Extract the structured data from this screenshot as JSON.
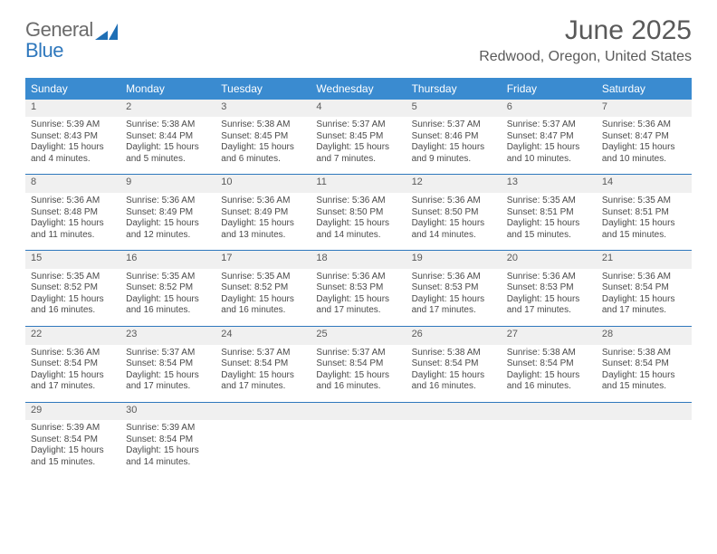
{
  "brand": {
    "word1": "General",
    "word2": "Blue",
    "word1_color": "#6b6b6b",
    "word2_color": "#2f78bd",
    "mark_color": "#1f6fb5"
  },
  "title": "June 2025",
  "subtitle": "Redwood, Oregon, United States",
  "colors": {
    "header_bg": "#3a8bd0",
    "header_fg": "#ffffff",
    "row_shade": "#f0f0f0",
    "rule": "#2f78bd",
    "text": "#4a4a4a"
  },
  "day_headers": [
    "Sunday",
    "Monday",
    "Tuesday",
    "Wednesday",
    "Thursday",
    "Friday",
    "Saturday"
  ],
  "weeks": [
    [
      {
        "n": "1",
        "sr": "5:39 AM",
        "ss": "8:43 PM",
        "dl": "15 hours and 4 minutes."
      },
      {
        "n": "2",
        "sr": "5:38 AM",
        "ss": "8:44 PM",
        "dl": "15 hours and 5 minutes."
      },
      {
        "n": "3",
        "sr": "5:38 AM",
        "ss": "8:45 PM",
        "dl": "15 hours and 6 minutes."
      },
      {
        "n": "4",
        "sr": "5:37 AM",
        "ss": "8:45 PM",
        "dl": "15 hours and 7 minutes."
      },
      {
        "n": "5",
        "sr": "5:37 AM",
        "ss": "8:46 PM",
        "dl": "15 hours and 9 minutes."
      },
      {
        "n": "6",
        "sr": "5:37 AM",
        "ss": "8:47 PM",
        "dl": "15 hours and 10 minutes."
      },
      {
        "n": "7",
        "sr": "5:36 AM",
        "ss": "8:47 PM",
        "dl": "15 hours and 10 minutes."
      }
    ],
    [
      {
        "n": "8",
        "sr": "5:36 AM",
        "ss": "8:48 PM",
        "dl": "15 hours and 11 minutes."
      },
      {
        "n": "9",
        "sr": "5:36 AM",
        "ss": "8:49 PM",
        "dl": "15 hours and 12 minutes."
      },
      {
        "n": "10",
        "sr": "5:36 AM",
        "ss": "8:49 PM",
        "dl": "15 hours and 13 minutes."
      },
      {
        "n": "11",
        "sr": "5:36 AM",
        "ss": "8:50 PM",
        "dl": "15 hours and 14 minutes."
      },
      {
        "n": "12",
        "sr": "5:36 AM",
        "ss": "8:50 PM",
        "dl": "15 hours and 14 minutes."
      },
      {
        "n": "13",
        "sr": "5:35 AM",
        "ss": "8:51 PM",
        "dl": "15 hours and 15 minutes."
      },
      {
        "n": "14",
        "sr": "5:35 AM",
        "ss": "8:51 PM",
        "dl": "15 hours and 15 minutes."
      }
    ],
    [
      {
        "n": "15",
        "sr": "5:35 AM",
        "ss": "8:52 PM",
        "dl": "15 hours and 16 minutes."
      },
      {
        "n": "16",
        "sr": "5:35 AM",
        "ss": "8:52 PM",
        "dl": "15 hours and 16 minutes."
      },
      {
        "n": "17",
        "sr": "5:35 AM",
        "ss": "8:52 PM",
        "dl": "15 hours and 16 minutes."
      },
      {
        "n": "18",
        "sr": "5:36 AM",
        "ss": "8:53 PM",
        "dl": "15 hours and 17 minutes."
      },
      {
        "n": "19",
        "sr": "5:36 AM",
        "ss": "8:53 PM",
        "dl": "15 hours and 17 minutes."
      },
      {
        "n": "20",
        "sr": "5:36 AM",
        "ss": "8:53 PM",
        "dl": "15 hours and 17 minutes."
      },
      {
        "n": "21",
        "sr": "5:36 AM",
        "ss": "8:54 PM",
        "dl": "15 hours and 17 minutes."
      }
    ],
    [
      {
        "n": "22",
        "sr": "5:36 AM",
        "ss": "8:54 PM",
        "dl": "15 hours and 17 minutes."
      },
      {
        "n": "23",
        "sr": "5:37 AM",
        "ss": "8:54 PM",
        "dl": "15 hours and 17 minutes."
      },
      {
        "n": "24",
        "sr": "5:37 AM",
        "ss": "8:54 PM",
        "dl": "15 hours and 17 minutes."
      },
      {
        "n": "25",
        "sr": "5:37 AM",
        "ss": "8:54 PM",
        "dl": "15 hours and 16 minutes."
      },
      {
        "n": "26",
        "sr": "5:38 AM",
        "ss": "8:54 PM",
        "dl": "15 hours and 16 minutes."
      },
      {
        "n": "27",
        "sr": "5:38 AM",
        "ss": "8:54 PM",
        "dl": "15 hours and 16 minutes."
      },
      {
        "n": "28",
        "sr": "5:38 AM",
        "ss": "8:54 PM",
        "dl": "15 hours and 15 minutes."
      }
    ],
    [
      {
        "n": "29",
        "sr": "5:39 AM",
        "ss": "8:54 PM",
        "dl": "15 hours and 15 minutes."
      },
      {
        "n": "30",
        "sr": "5:39 AM",
        "ss": "8:54 PM",
        "dl": "15 hours and 14 minutes."
      },
      null,
      null,
      null,
      null,
      null
    ]
  ],
  "labels": {
    "sunrise": "Sunrise: ",
    "sunset": "Sunset: ",
    "daylight": "Daylight: "
  }
}
